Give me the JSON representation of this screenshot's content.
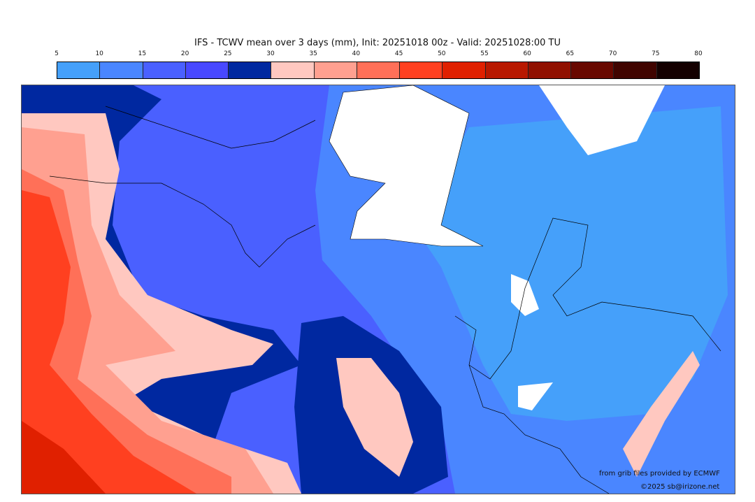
{
  "title": "IFS - TCWV mean over 3 days (mm), Init: 20251018 00z - Valid: 20251028:00 TU",
  "colorbar": {
    "ticks": [
      "5",
      "10",
      "15",
      "20",
      "25",
      "30",
      "35",
      "40",
      "45",
      "50",
      "55",
      "60",
      "65",
      "70",
      "75",
      "80"
    ],
    "colors": [
      "#45a0fa",
      "#4a86ff",
      "#4a60ff",
      "#4848ff",
      "#0028a0",
      "#ffc8c0",
      "#ffa090",
      "#ff7058",
      "#ff4020",
      "#e02000",
      "#b81800",
      "#901000",
      "#680800",
      "#400400",
      "#140000"
    ]
  },
  "credits": {
    "source": "from grib files provided by ECMWF",
    "copyright": "©2025 sb@irizone.net"
  }
}
